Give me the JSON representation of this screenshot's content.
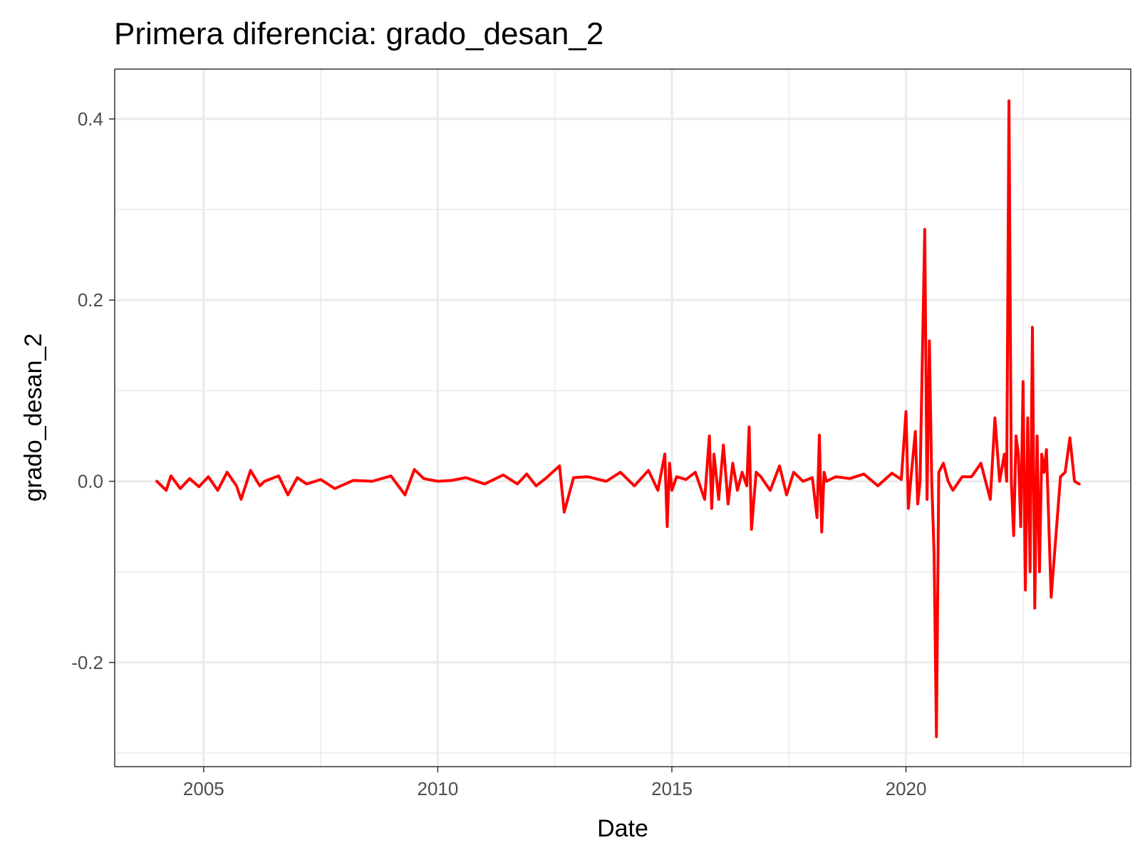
{
  "chart_data": {
    "type": "line",
    "title": "Primera diferencia: grado_desan_2",
    "xlabel": "Date",
    "ylabel": "grado_desan_2",
    "x_axis": {
      "range": [
        2003.1,
        2024.8
      ],
      "ticks": [
        2005,
        2010,
        2015,
        2020
      ],
      "tick_labels": [
        "2005",
        "2010",
        "2015",
        "2020"
      ],
      "minor_ticks": [
        2007.5,
        2012.5,
        2017.5,
        2022.5
      ]
    },
    "y_axis": {
      "range": [
        -0.315,
        0.455
      ],
      "ticks": [
        -0.2,
        0.0,
        0.2,
        0.4
      ],
      "tick_labels": [
        "-0.2",
        "0.0",
        "0.2",
        "0.4"
      ],
      "minor_ticks": [
        -0.3,
        -0.1,
        0.1,
        0.3
      ]
    },
    "grid": true,
    "legend": "none",
    "colors": {
      "line": "#ff0000",
      "grid": "#ebebeb",
      "panel_border": "#333333"
    },
    "series": [
      {
        "x": [
          2004.0,
          2004.2,
          2004.3,
          2004.5,
          2004.7,
          2004.9,
          2005.1,
          2005.3,
          2005.5,
          2005.7,
          2005.8,
          2006.0,
          2006.2,
          2006.3,
          2006.6,
          2006.8,
          2007.0,
          2007.2,
          2007.5,
          2007.8,
          2008.2,
          2008.6,
          2009.0,
          2009.3,
          2009.5,
          2009.7,
          2010.0,
          2010.3,
          2010.6,
          2011.0,
          2011.4,
          2011.7,
          2011.9,
          2012.1,
          2012.3,
          2012.6,
          2012.7,
          2012.9,
          2013.2,
          2013.6,
          2013.9,
          2014.2,
          2014.5,
          2014.7,
          2014.85,
          2014.9,
          2014.95,
          2015.0,
          2015.1,
          2015.3,
          2015.5,
          2015.7,
          2015.8,
          2015.85,
          2015.9,
          2016.0,
          2016.1,
          2016.2,
          2016.3,
          2016.4,
          2016.5,
          2016.6,
          2016.65,
          2016.7,
          2016.8,
          2016.9,
          2017.1,
          2017.3,
          2017.45,
          2017.6,
          2017.8,
          2018.0,
          2018.1,
          2018.15,
          2018.2,
          2018.25,
          2018.3,
          2018.5,
          2018.8,
          2019.1,
          2019.4,
          2019.7,
          2019.9,
          2020.0,
          2020.05,
          2020.1,
          2020.2,
          2020.25,
          2020.3,
          2020.4,
          2020.45,
          2020.5,
          2020.55,
          2020.6,
          2020.65,
          2020.7,
          2020.8,
          2020.9,
          2021.0,
          2021.2,
          2021.4,
          2021.6,
          2021.8,
          2021.9,
          2022.0,
          2022.1,
          2022.15,
          2022.2,
          2022.25,
          2022.3,
          2022.35,
          2022.4,
          2022.45,
          2022.5,
          2022.55,
          2022.6,
          2022.65,
          2022.7,
          2022.75,
          2022.8,
          2022.85,
          2022.9,
          2022.95,
          2023.0,
          2023.1,
          2023.3,
          2023.4,
          2023.5,
          2023.6,
          2023.7
        ],
        "y": [
          0.0,
          -0.01,
          0.006,
          -0.008,
          0.003,
          -0.006,
          0.005,
          -0.01,
          0.01,
          -0.005,
          -0.02,
          0.012,
          -0.005,
          0.0,
          0.006,
          -0.015,
          0.004,
          -0.003,
          0.002,
          -0.008,
          0.001,
          0.0,
          0.006,
          -0.015,
          0.013,
          0.003,
          0.0,
          0.001,
          0.004,
          -0.003,
          0.007,
          -0.003,
          0.008,
          -0.005,
          0.003,
          0.017,
          -0.034,
          0.004,
          0.005,
          0.0,
          0.01,
          -0.005,
          0.012,
          -0.01,
          0.03,
          -0.05,
          0.02,
          -0.01,
          0.005,
          0.002,
          0.01,
          -0.02,
          0.05,
          -0.03,
          0.03,
          -0.02,
          0.04,
          -0.025,
          0.02,
          -0.01,
          0.01,
          -0.005,
          0.06,
          -0.053,
          0.01,
          0.005,
          -0.01,
          0.017,
          -0.015,
          0.01,
          0.0,
          0.004,
          -0.04,
          0.051,
          -0.056,
          0.01,
          0.0,
          0.005,
          0.003,
          0.008,
          -0.005,
          0.009,
          0.002,
          0.077,
          -0.03,
          0.0,
          0.055,
          -0.025,
          0.0,
          0.278,
          -0.02,
          0.155,
          0.0,
          -0.08,
          -0.282,
          0.01,
          0.02,
          0.0,
          -0.01,
          0.005,
          0.005,
          0.02,
          -0.02,
          0.07,
          0.0,
          0.03,
          0.0,
          0.42,
          0.0,
          -0.06,
          0.05,
          0.03,
          -0.05,
          0.11,
          -0.12,
          0.07,
          -0.1,
          0.17,
          -0.14,
          0.05,
          -0.1,
          0.03,
          0.01,
          0.035,
          -0.128,
          0.005,
          0.01,
          0.048,
          0.0,
          -0.003
        ]
      }
    ]
  }
}
